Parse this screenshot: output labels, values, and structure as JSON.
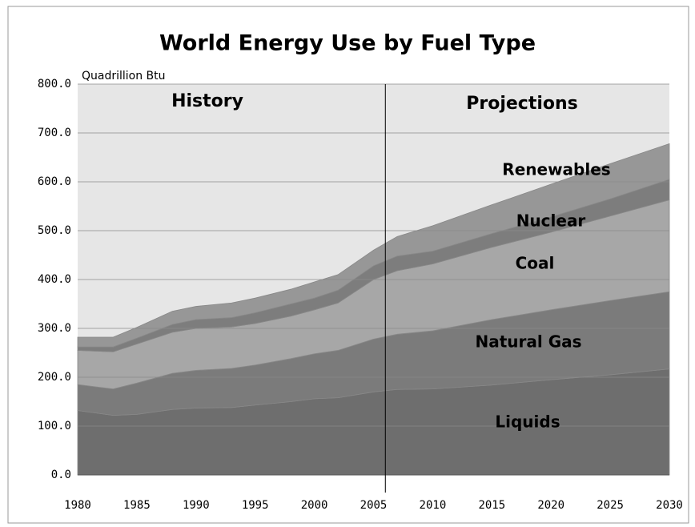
{
  "chart_data": {
    "type": "stacked_area",
    "title": "World Energy Use by Fuel Type",
    "y_label": "Quadrillion Btu",
    "annotations": [
      "History",
      "Projections"
    ],
    "divider": 2006,
    "x": [
      1980,
      1983,
      1985,
      1988,
      1990,
      1993,
      1995,
      1998,
      2000,
      2002,
      2005,
      2007,
      2010,
      2015,
      2020,
      2025,
      2030
    ],
    "series": [
      {
        "name": "Liquids",
        "color": "#6e6e6e",
        "values": [
          132,
          122,
          124,
          134,
          137,
          138,
          143,
          150,
          156,
          158,
          170,
          175,
          176,
          184,
          195,
          205,
          217
        ]
      },
      {
        "name": "Natural Gas",
        "color": "#7b7b7b",
        "values": [
          53,
          54,
          64,
          74,
          77,
          80,
          82,
          88,
          92,
          97,
          108,
          113,
          119,
          134,
          143,
          152,
          158
        ]
      },
      {
        "name": "Coal",
        "color": "#a7a7a7",
        "values": [
          70,
          76,
          80,
          84,
          86,
          85,
          85,
          87,
          90,
          97,
          122,
          130,
          137,
          148,
          159,
          173,
          188
        ]
      },
      {
        "name": "Nuclear",
        "color": "#7d7d7d",
        "values": [
          7,
          10,
          12,
          16,
          18,
          19,
          22,
          25,
          24,
          26,
          28,
          30,
          26,
          28,
          31,
          35,
          42
        ]
      },
      {
        "name": "Renewables",
        "color": "#979797",
        "values": [
          20,
          20,
          22,
          27,
          27,
          30,
          30,
          30,
          33,
          32,
          32,
          40,
          52,
          59,
          67,
          72,
          73
        ]
      }
    ],
    "xlim": [
      1980,
      2030
    ],
    "xticks": [
      1980,
      1985,
      1990,
      1995,
      2000,
      2005,
      2010,
      2015,
      2020,
      2025,
      2030
    ],
    "ylim": [
      0,
      800
    ],
    "yticks": [
      {
        "value": 0,
        "label": "0.0"
      },
      {
        "value": 100,
        "label": "100.0"
      },
      {
        "value": 200,
        "label": "200.0"
      },
      {
        "value": 300,
        "label": "300.0"
      },
      {
        "value": 400,
        "label": "400.0"
      },
      {
        "value": 500,
        "label": "500.0"
      },
      {
        "value": 600,
        "label": "600.0"
      },
      {
        "value": 700,
        "label": "700.0"
      },
      {
        "value": 800,
        "label": "800.0"
      }
    ],
    "grid": true
  }
}
